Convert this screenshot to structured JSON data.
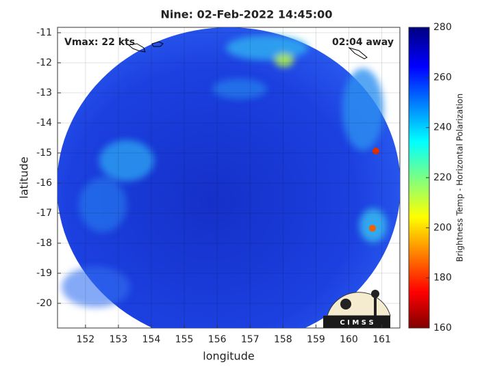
{
  "chart_data": {
    "type": "map",
    "title": "Nine: 02-Feb-2022 14:45:00",
    "x_label": "longitude",
    "y_label": "latitude",
    "xlim": [
      151.15,
      161.55
    ],
    "ylim": [
      -20.82,
      -10.82
    ],
    "xticks": [
      152,
      153,
      154,
      155,
      156,
      157,
      158,
      159,
      160,
      161
    ],
    "yticks": [
      -20,
      -19,
      -18,
      -17,
      -16,
      -15,
      -14,
      -13,
      -12,
      -11
    ],
    "grid": true,
    "annotations": {
      "left": "Vmax: 22 kts",
      "right": "02:04 away"
    },
    "colorbar": {
      "label": "Brightness Temp - Horizontal Polarization",
      "lim": [
        160,
        280
      ],
      "ticks": [
        160,
        180,
        200,
        220,
        240,
        260,
        280
      ]
    },
    "logo_text": "C I M S S"
  }
}
